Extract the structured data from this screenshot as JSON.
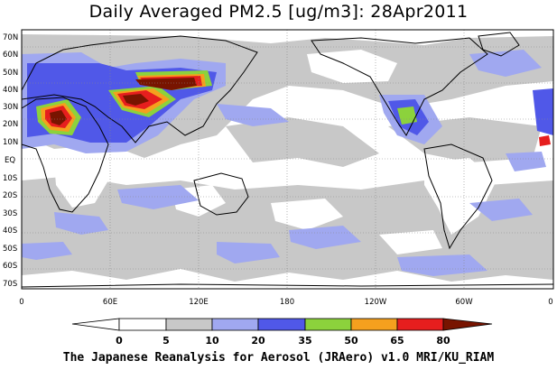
{
  "title": "Daily Averaged PM2.5 [ug/m3]: 28Apr2011",
  "credit": "The Japanese Reanalysis for Aerosol (JRAero) v1.0 MRI/KU_RIAM",
  "map": {
    "lat_labels": [
      "70N",
      "60N",
      "50N",
      "40N",
      "30N",
      "20N",
      "10N",
      "EQ",
      "10S",
      "20S",
      "30S",
      "40S",
      "50S",
      "60S",
      "70S"
    ],
    "lon_labels": [
      "0",
      "60E",
      "120E",
      "180",
      "120W",
      "60W",
      "0"
    ],
    "projection": "equirectangular",
    "grid": true
  },
  "colorbar": {
    "ticks": [
      "0",
      "5",
      "10",
      "20",
      "35",
      "50",
      "65",
      "80"
    ],
    "colors": [
      "#ffffff",
      "#c8c8c8",
      "#a0a8f0",
      "#5058e8",
      "#8cd23c",
      "#f5a01e",
      "#e61e1e",
      "#781400"
    ]
  }
}
